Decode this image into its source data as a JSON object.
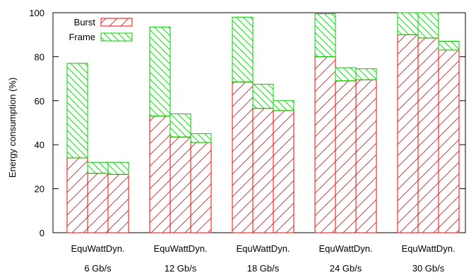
{
  "chart_data": {
    "type": "bar",
    "stacked": true,
    "ylabel": "Energy consumption (%)",
    "xlabel": "",
    "ylim": [
      0,
      100
    ],
    "yticks": [
      0,
      20,
      40,
      60,
      80,
      100
    ],
    "groups": [
      {
        "label": "6 Gb/s",
        "bars": [
          "Equ",
          "Watt",
          "Dyn."
        ]
      },
      {
        "label": "12 Gb/s",
        "bars": [
          "Equ",
          "Watt",
          "Dyn."
        ]
      },
      {
        "label": "18 Gb/s",
        "bars": [
          "Equ",
          "Watt",
          "Dyn."
        ]
      },
      {
        "label": "24 Gb/s",
        "bars": [
          "Equ",
          "Watt",
          "Dyn."
        ]
      },
      {
        "label": "30 Gb/s",
        "bars": [
          "Equ",
          "Watt",
          "Dyn."
        ]
      }
    ],
    "series": [
      {
        "name": "Burst",
        "color": "#ff0000",
        "hatch": "forward",
        "values": [
          [
            34,
            27,
            26.5
          ],
          [
            53,
            43.5,
            41
          ],
          [
            68.5,
            56.5,
            55.5
          ],
          [
            80,
            69,
            69.5
          ],
          [
            90,
            88.5,
            83
          ]
        ]
      },
      {
        "name": "Frame",
        "color": "#00cc00",
        "hatch": "backward",
        "values": [
          [
            43,
            5,
            5.5
          ],
          [
            40.5,
            10.5,
            4
          ],
          [
            29.5,
            11,
            4.5
          ],
          [
            19.5,
            6,
            5
          ],
          [
            10,
            11.5,
            4
          ]
        ]
      }
    ],
    "legend_position": "top-left",
    "grid": false
  }
}
